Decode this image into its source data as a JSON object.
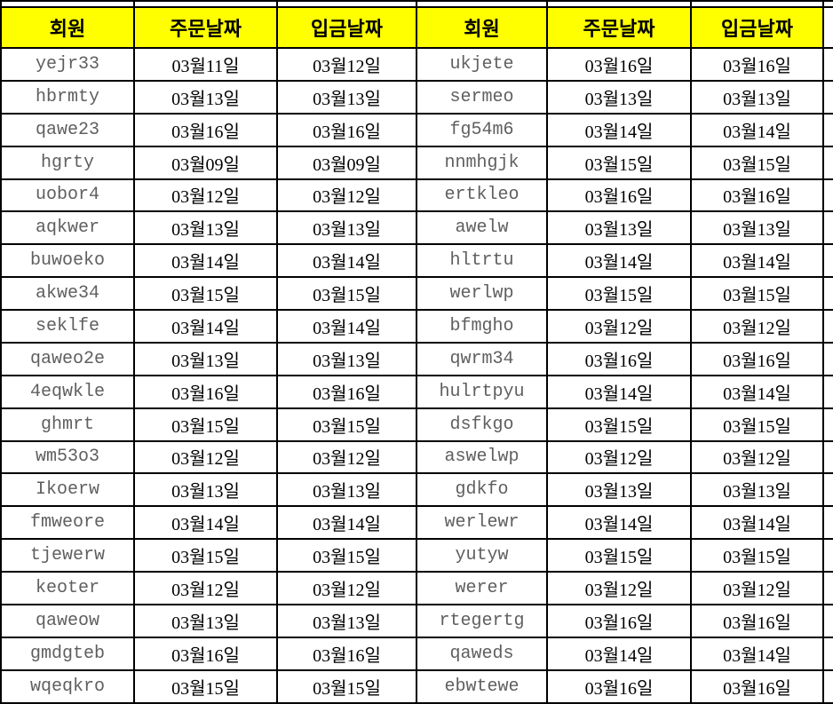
{
  "table": {
    "column_kinds": [
      "member",
      "order-date",
      "deposit-date",
      "member",
      "order-date",
      "deposit-date"
    ],
    "headers": [
      "회원",
      "주문날짜",
      "입금날짜",
      "회원",
      "주문날짜",
      "입금날짜"
    ],
    "rows": [
      [
        "yejr33",
        "03월11일",
        "03월12일",
        "ukjete",
        "03월16일",
        "03월16일"
      ],
      [
        "hbrmty",
        "03월13일",
        "03월13일",
        "sermeo",
        "03월13일",
        "03월13일"
      ],
      [
        "qawe23",
        "03월16일",
        "03월16일",
        "fg54m6",
        "03월14일",
        "03월14일"
      ],
      [
        "hgrty",
        "03월09일",
        "03월09일",
        "nnmhgjk",
        "03월15일",
        "03월15일"
      ],
      [
        "uobor4",
        "03월12일",
        "03월12일",
        "ertkleo",
        "03월16일",
        "03월16일"
      ],
      [
        "aqkwer",
        "03월13일",
        "03월13일",
        "awelw",
        "03월13일",
        "03월13일"
      ],
      [
        "buwoeko",
        "03월14일",
        "03월14일",
        "hltrtu",
        "03월14일",
        "03월14일"
      ],
      [
        "akwe34",
        "03월15일",
        "03월15일",
        "werlwp",
        "03월15일",
        "03월15일"
      ],
      [
        "seklfe",
        "03월14일",
        "03월14일",
        "bfmgho",
        "03월12일",
        "03월12일"
      ],
      [
        "qaweo2e",
        "03월13일",
        "03월13일",
        "qwrm34",
        "03월16일",
        "03월16일"
      ],
      [
        "4eqwkle",
        "03월16일",
        "03월16일",
        "hulrtpyu",
        "03월14일",
        "03월14일"
      ],
      [
        "ghmrt",
        "03월15일",
        "03월15일",
        "dsfkgo",
        "03월15일",
        "03월15일"
      ],
      [
        "wm53o3",
        "03월12일",
        "03월12일",
        "aswelwp",
        "03월12일",
        "03월12일"
      ],
      [
        "Ikoerw",
        "03월13일",
        "03월13일",
        "gdkfo",
        "03월13일",
        "03월13일"
      ],
      [
        "fmweore",
        "03월14일",
        "03월14일",
        "werlewr",
        "03월14일",
        "03월14일"
      ],
      [
        "tjewerw",
        "03월15일",
        "03월15일",
        "yutyw",
        "03월15일",
        "03월15일"
      ],
      [
        "keoter",
        "03월12일",
        "03월12일",
        "werer",
        "03월12일",
        "03월12일"
      ],
      [
        "qaweow",
        "03월13일",
        "03월13일",
        "rtegertg",
        "03월16일",
        "03월16일"
      ],
      [
        "gmdgteb",
        "03월16일",
        "03월16일",
        "qaweds",
        "03월14일",
        "03월14일"
      ],
      [
        "wqeqkro",
        "03월15일",
        "03월15일",
        "ebwtewe",
        "03월16일",
        "03월16일"
      ]
    ],
    "colors": {
      "header_background": "#ffff00",
      "header_text": "#000000",
      "member_text": "#5f5f5f",
      "date_text": "#000000",
      "gridline": "#000000",
      "cell_background": "#ffffff"
    }
  }
}
